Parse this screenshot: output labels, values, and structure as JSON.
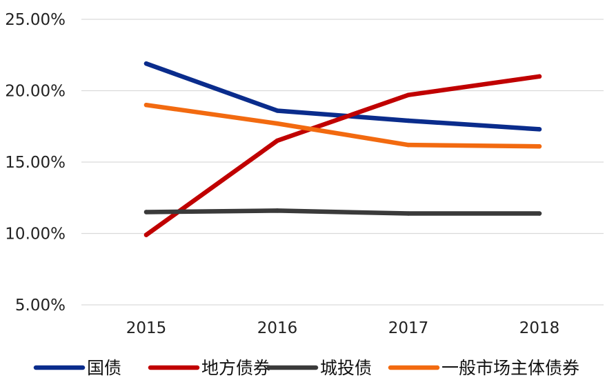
{
  "chart_data": {
    "type": "line",
    "categories": [
      "2015",
      "2016",
      "2017",
      "2018"
    ],
    "yticks": [
      5,
      10,
      15,
      20,
      25
    ],
    "ytick_labels": [
      "5.00%",
      "10.00%",
      "15.00%",
      "20.00%",
      "25.00%"
    ],
    "ylim": [
      5,
      25
    ],
    "grid": true,
    "legend": "bottom",
    "series": [
      {
        "name": "国债",
        "values": [
          21.9,
          18.6,
          17.9,
          17.3
        ],
        "color": "#0a2c8c"
      },
      {
        "name": "地方债券",
        "values": [
          9.9,
          16.5,
          19.7,
          21.0
        ],
        "color": "#c00000"
      },
      {
        "name": "城投债",
        "values": [
          11.5,
          11.6,
          11.4,
          11.4
        ],
        "color": "#3a3a3a"
      },
      {
        "name": "一般市场主体债券",
        "values": [
          19.0,
          17.7,
          16.2,
          16.1
        ],
        "color": "#f26a10"
      }
    ]
  }
}
